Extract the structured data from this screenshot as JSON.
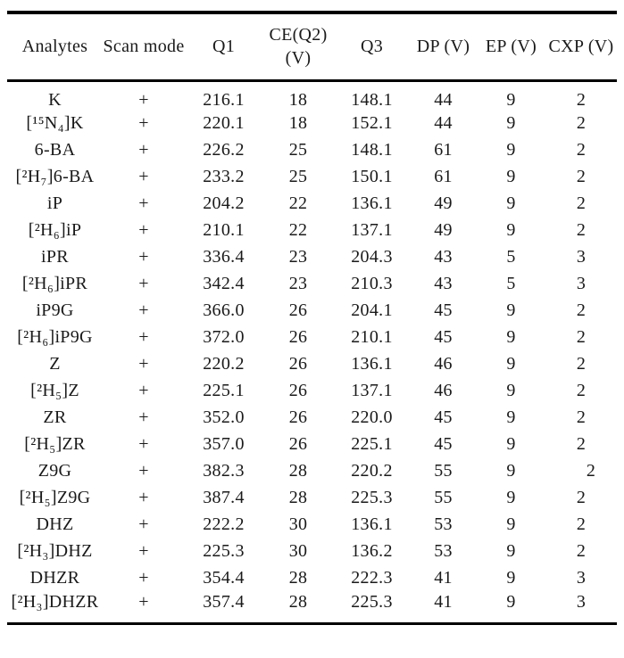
{
  "colors": {
    "background": "#ffffff",
    "text": "#1a1a1a",
    "rule": "#000000"
  },
  "table": {
    "columns": [
      {
        "key": "analyte",
        "label": "Analytes"
      },
      {
        "key": "scan_mode",
        "label": "Scan mode"
      },
      {
        "key": "q1",
        "label": "Q1"
      },
      {
        "key": "ce",
        "label": "CE(Q2)\n(V)"
      },
      {
        "key": "q3",
        "label": "Q3"
      },
      {
        "key": "dp",
        "label": "DP (V)"
      },
      {
        "key": "ep",
        "label": "EP (V)"
      },
      {
        "key": "cxp",
        "label": "CXP (V)"
      }
    ],
    "rows": [
      {
        "analyte": "K",
        "scan_mode": "+",
        "q1": "216.1",
        "ce": "18",
        "q3": "148.1",
        "dp": "44",
        "ep": "9",
        "cxp": "2"
      },
      {
        "analyte": "[¹⁵N₄]K",
        "scan_mode": "+",
        "q1": "220.1",
        "ce": "18",
        "q3": "152.1",
        "dp": "44",
        "ep": "9",
        "cxp": "2"
      },
      {
        "analyte": "6-BA",
        "scan_mode": "+",
        "q1": "226.2",
        "ce": "25",
        "q3": "148.1",
        "dp": "61",
        "ep": "9",
        "cxp": "2"
      },
      {
        "analyte": "[²H₇]6-BA",
        "scan_mode": "+",
        "q1": "233.2",
        "ce": "25",
        "q3": "150.1",
        "dp": "61",
        "ep": "9",
        "cxp": "2"
      },
      {
        "analyte": "iP",
        "scan_mode": "+",
        "q1": "204.2",
        "ce": "22",
        "q3": "136.1",
        "dp": "49",
        "ep": "9",
        "cxp": "2"
      },
      {
        "analyte": "[²H₆]iP",
        "scan_mode": "+",
        "q1": "210.1",
        "ce": "22",
        "q3": "137.1",
        "dp": "49",
        "ep": "9",
        "cxp": "2"
      },
      {
        "analyte": "iPR",
        "scan_mode": "+",
        "q1": "336.4",
        "ce": "23",
        "q3": "204.3",
        "dp": "43",
        "ep": "5",
        "cxp": "3"
      },
      {
        "analyte": "[²H₆]iPR",
        "scan_mode": "+",
        "q1": "342.4",
        "ce": "23",
        "q3": "210.3",
        "dp": "43",
        "ep": "5",
        "cxp": "3"
      },
      {
        "analyte": "iP9G",
        "scan_mode": "+",
        "q1": "366.0",
        "ce": "26",
        "q3": "204.1",
        "dp": "45",
        "ep": "9",
        "cxp": "2"
      },
      {
        "analyte": "[²H₆]iP9G",
        "scan_mode": "+",
        "q1": "372.0",
        "ce": "26",
        "q3": "210.1",
        "dp": "45",
        "ep": "9",
        "cxp": "2"
      },
      {
        "analyte": "Z",
        "scan_mode": "+",
        "q1": "220.2",
        "ce": "26",
        "q3": "136.1",
        "dp": "46",
        "ep": "9",
        "cxp": "2"
      },
      {
        "analyte": "[²H₅]Z",
        "scan_mode": "+",
        "q1": "225.1",
        "ce": "26",
        "q3": "137.1",
        "dp": "46",
        "ep": "9",
        "cxp": "2"
      },
      {
        "analyte": "ZR",
        "scan_mode": "+",
        "q1": "352.0",
        "ce": "26",
        "q3": "220.0",
        "dp": "45",
        "ep": "9",
        "cxp": "2"
      },
      {
        "analyte": "[²H₅]ZR",
        "scan_mode": "+",
        "q1": "357.0",
        "ce": "26",
        "q3": "225.1",
        "dp": "45",
        "ep": "9",
        "cxp": "2"
      },
      {
        "analyte": "Z9G",
        "scan_mode": "+",
        "q1": "382.3",
        "ce": "28",
        "q3": "220.2",
        "dp": "55",
        "ep": "9",
        "cxp": "2",
        "cxp_shift": true
      },
      {
        "analyte": "[²H₅]Z9G",
        "scan_mode": "+",
        "q1": "387.4",
        "ce": "28",
        "q3": "225.3",
        "dp": "55",
        "ep": "9",
        "cxp": "2"
      },
      {
        "analyte": "DHZ",
        "scan_mode": "+",
        "q1": "222.2",
        "ce": "30",
        "q3": "136.1",
        "dp": "53",
        "ep": "9",
        "cxp": "2"
      },
      {
        "analyte": "[²H₃]DHZ",
        "scan_mode": "+",
        "q1": "225.3",
        "ce": "30",
        "q3": "136.2",
        "dp": "53",
        "ep": "9",
        "cxp": "2"
      },
      {
        "analyte": "DHZR",
        "scan_mode": "+",
        "q1": "354.4",
        "ce": "28",
        "q3": "222.3",
        "dp": "41",
        "ep": "9",
        "cxp": "3"
      },
      {
        "analyte": "[²H₃]DHZR",
        "scan_mode": "+",
        "q1": "357.4",
        "ce": "28",
        "q3": "225.3",
        "dp": "41",
        "ep": "9",
        "cxp": "3"
      }
    ]
  }
}
